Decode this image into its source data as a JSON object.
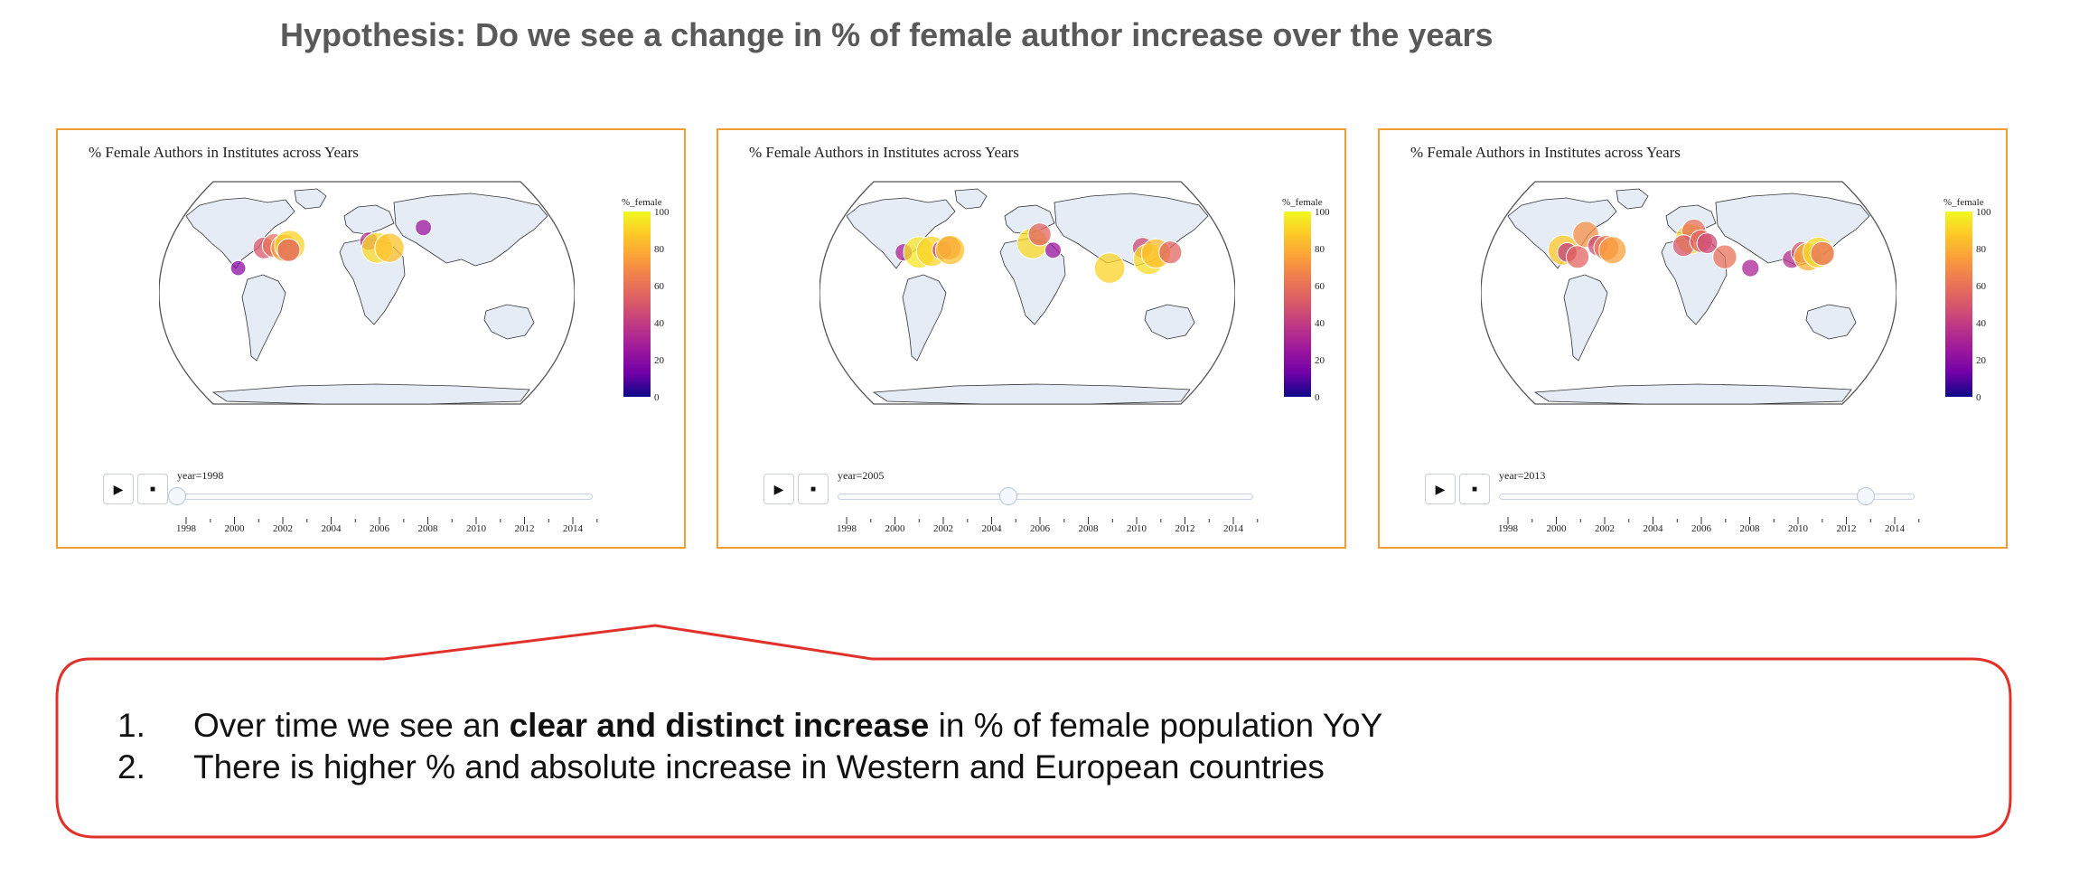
{
  "title": "Hypothesis: Do we see a change in % of female author increase over the years",
  "panels": [
    {
      "title": "% Female Authors in Institutes across Years",
      "year_label": "year=1998",
      "year": 1998,
      "points": [
        {
          "lon": -100,
          "lat": 40,
          "v": 50
        },
        {
          "lon": -90,
          "lat": 42,
          "v": 60
        },
        {
          "lon": -80,
          "lat": 40,
          "v": 75
        },
        {
          "lon": -75,
          "lat": 42,
          "v": 90
        },
        {
          "lon": -76,
          "lat": 38,
          "v": 55
        },
        {
          "lon": 2,
          "lat": 46,
          "v": 35
        },
        {
          "lon": 10,
          "lat": 40,
          "v": 92
        },
        {
          "lon": 22,
          "lat": 40,
          "v": 85
        },
        {
          "lon": 55,
          "lat": 58,
          "v": 25
        },
        {
          "lon": -125,
          "lat": 22,
          "v": 20
        }
      ]
    },
    {
      "title": "% Female Authors in Institutes across Years",
      "year_label": "year=2005",
      "year": 2005,
      "points": [
        {
          "lon": -120,
          "lat": 36,
          "v": 30
        },
        {
          "lon": -105,
          "lat": 36,
          "v": 95
        },
        {
          "lon": -93,
          "lat": 37,
          "v": 90
        },
        {
          "lon": -83,
          "lat": 38,
          "v": 40
        },
        {
          "lon": -76,
          "lat": 40,
          "v": 60
        },
        {
          "lon": -75,
          "lat": 38,
          "v": 85
        },
        {
          "lon": 5,
          "lat": 44,
          "v": 92
        },
        {
          "lon": 12,
          "lat": 52,
          "v": 55
        },
        {
          "lon": 25,
          "lat": 38,
          "v": 25
        },
        {
          "lon": 80,
          "lat": 22,
          "v": 90
        },
        {
          "lon": 112,
          "lat": 40,
          "v": 45
        },
        {
          "lon": 118,
          "lat": 30,
          "v": 92
        },
        {
          "lon": 125,
          "lat": 35,
          "v": 85
        },
        {
          "lon": 139,
          "lat": 36,
          "v": 55
        }
      ]
    },
    {
      "title": "% Female Authors in Institutes across Years",
      "year_label": "year=2013",
      "year": 2013,
      "points": [
        {
          "lon": -122,
          "lat": 38,
          "v": 88
        },
        {
          "lon": -118,
          "lat": 36,
          "v": 40
        },
        {
          "lon": -108,
          "lat": 32,
          "v": 55
        },
        {
          "lon": -100,
          "lat": 52,
          "v": 70
        },
        {
          "lon": -88,
          "lat": 42,
          "v": 45
        },
        {
          "lon": -80,
          "lat": 40,
          "v": 65
        },
        {
          "lon": -74,
          "lat": 38,
          "v": 75
        },
        {
          "lon": 2,
          "lat": 48,
          "v": 90
        },
        {
          "lon": 5,
          "lat": 55,
          "v": 60
        },
        {
          "lon": -5,
          "lat": 42,
          "v": 50
        },
        {
          "lon": 12,
          "lat": 46,
          "v": 55
        },
        {
          "lon": 18,
          "lat": 44,
          "v": 45
        },
        {
          "lon": 35,
          "lat": 32,
          "v": 60
        },
        {
          "lon": 60,
          "lat": 22,
          "v": 30
        },
        {
          "lon": 100,
          "lat": 30,
          "v": 35
        },
        {
          "lon": 110,
          "lat": 36,
          "v": 50
        },
        {
          "lon": 116,
          "lat": 32,
          "v": 80
        },
        {
          "lon": 126,
          "lat": 36,
          "v": 92
        },
        {
          "lon": 130,
          "lat": 35,
          "v": 60
        }
      ]
    }
  ],
  "colorbar": {
    "title": "%_female",
    "ticks": [
      "100",
      "80",
      "60",
      "40",
      "20",
      "0"
    ]
  },
  "slider": {
    "years": [
      "1998",
      "2000",
      "2002",
      "2004",
      "2006",
      "2008",
      "2010",
      "2012",
      "2014"
    ],
    "min": 1998,
    "max": 2015
  },
  "buttons": {
    "play_icon": "▶",
    "stop_icon": "■"
  },
  "conclusions": [
    {
      "num": "1.",
      "pre": "Over time we see an ",
      "bold": "clear and distinct increase",
      "post": " in % of female population YoY"
    },
    {
      "num": "2.",
      "pre": "There is higher % and absolute increase in Western and European countries",
      "bold": "",
      "post": ""
    }
  ],
  "colors": {
    "panel_border": "#f39c33",
    "callout_border": "#e0322a",
    "land": "#e5ecf6"
  }
}
